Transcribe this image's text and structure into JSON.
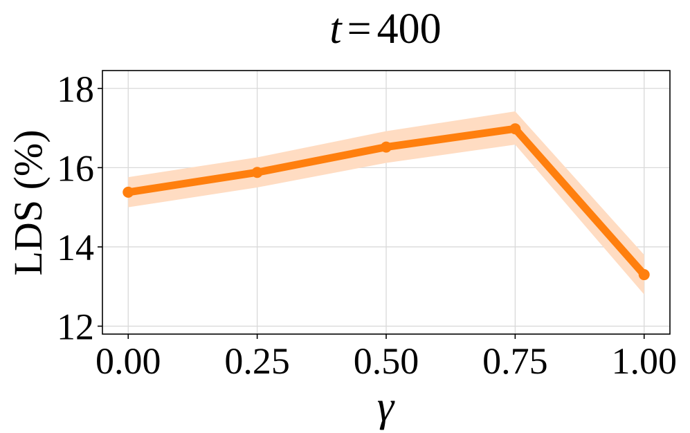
{
  "chart_data": {
    "type": "line",
    "title_math": {
      "var": "t",
      "op": "=",
      "value": "400"
    },
    "xlabel": "γ",
    "ylabel": "LDS (%)",
    "x": [
      0.0,
      0.25,
      0.5,
      0.75,
      1.0
    ],
    "x_tick_labels": [
      "0.00",
      "0.25",
      "0.50",
      "0.75",
      "1.00"
    ],
    "y_ticks": [
      12,
      14,
      16,
      18
    ],
    "y_tick_labels": [
      "12",
      "14",
      "16",
      "18"
    ],
    "xlim": [
      -0.05,
      1.05
    ],
    "ylim": [
      11.8,
      18.45
    ],
    "grid": true,
    "series": [
      {
        "values": [
          15.38,
          15.88,
          16.52,
          16.98,
          13.3
        ],
        "lower": [
          15.0,
          15.5,
          16.12,
          16.58,
          12.8
        ],
        "upper": [
          15.76,
          16.26,
          16.92,
          17.42,
          13.8
        ],
        "color": "#ff7f0e",
        "band_color": "#ffdcc2"
      }
    ]
  }
}
